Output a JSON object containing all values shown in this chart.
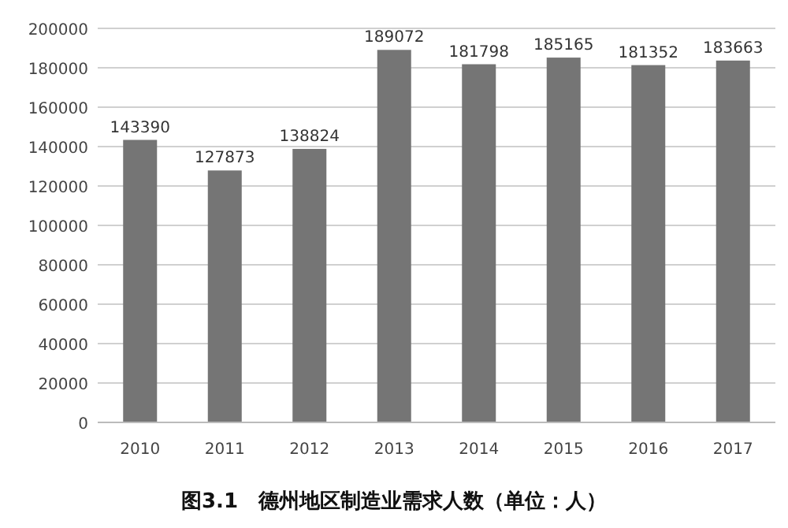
{
  "chart_data": {
    "type": "bar",
    "title": "图3.1　德州地区制造业需求人数（单位：人）",
    "categories": [
      "2010",
      "2011",
      "2012",
      "2013",
      "2014",
      "2015",
      "2016",
      "2017"
    ],
    "values": [
      143390,
      127873,
      138824,
      189072,
      181798,
      185165,
      181352,
      183663
    ],
    "color": "#757575",
    "ylim": [
      0,
      200000
    ],
    "yticks": [
      0,
      20000,
      40000,
      60000,
      80000,
      100000,
      120000,
      140000,
      160000,
      180000,
      200000
    ],
    "grid": "y",
    "data_labels": true
  }
}
